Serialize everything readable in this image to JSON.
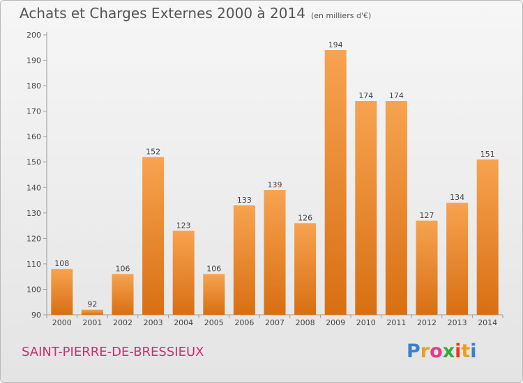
{
  "header": {
    "title": "Achats et Charges Externes 2000 à 2014",
    "subtitle": "(en milliers d'€)"
  },
  "footer": {
    "town": "SAINT-PIERRE-DE-BRESSIEUX",
    "logo": "Proxiti"
  },
  "colors": {
    "bar_light": "#f7a350",
    "bar_dark": "#d86f12",
    "town_text": "#cc2e6e",
    "logo_letters": [
      "#3c7fd0",
      "#e8a020",
      "#e03c8c",
      "#38a838",
      "#e83820",
      "#e8a020",
      "#3c7fd0"
    ]
  },
  "chart_data": {
    "type": "bar",
    "categories": [
      "2000",
      "2001",
      "2002",
      "2003",
      "2004",
      "2005",
      "2006",
      "2007",
      "2008",
      "2009",
      "2010",
      "2011",
      "2012",
      "2013",
      "2014"
    ],
    "values": [
      108,
      92,
      106,
      152,
      123,
      106,
      133,
      139,
      126,
      194,
      174,
      174,
      127,
      134,
      151
    ],
    "ylim": [
      90,
      200
    ],
    "yticks": [
      90,
      100,
      110,
      120,
      130,
      140,
      150,
      160,
      170,
      180,
      190,
      200
    ],
    "grid": false,
    "data_labels": true
  }
}
